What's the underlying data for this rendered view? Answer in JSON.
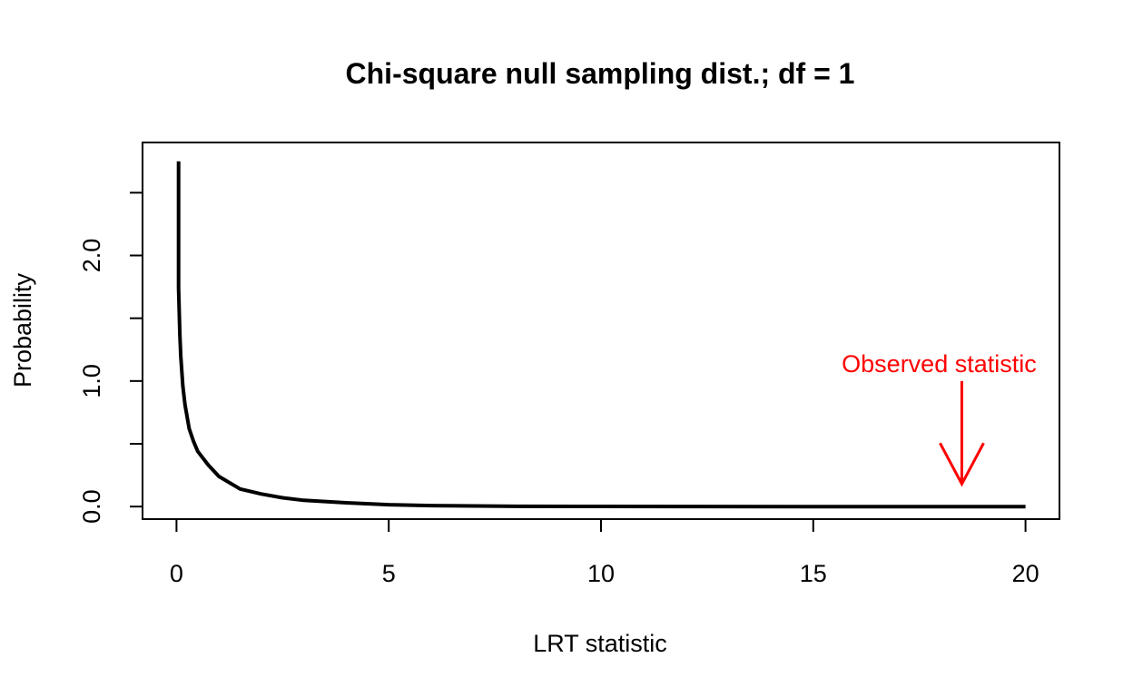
{
  "chart_data": {
    "type": "line",
    "title": "Chi-square null sampling dist.; df = 1",
    "xlabel": "LRT statistic",
    "ylabel": "Probability",
    "xlim": [
      -0.8,
      20.8
    ],
    "ylim": [
      -0.1,
      2.9
    ],
    "x_ticks": [
      0,
      5,
      10,
      15,
      20
    ],
    "x_tick_labels": [
      "0",
      "5",
      "10",
      "15",
      "20"
    ],
    "y_ticks": [
      0.0,
      0.5,
      1.0,
      1.5,
      2.0,
      2.5
    ],
    "y_tick_labels": [
      "0.0",
      "",
      "1.0",
      "",
      "2.0",
      ""
    ],
    "grid": false,
    "series": [
      {
        "color": "#000000",
        "x": [
          0.05,
          0.08,
          0.1,
          0.15,
          0.2,
          0.3,
          0.4,
          0.5,
          0.75,
          1.0,
          1.5,
          2.0,
          2.5,
          3.0,
          4.0,
          5.0,
          6.0,
          8.0,
          10.0,
          12.0,
          15.0,
          18.0,
          20.0
        ],
        "y": [
          1.74,
          1.37,
          1.2,
          0.96,
          0.81,
          0.62,
          0.52,
          0.44,
          0.33,
          0.24,
          0.14,
          0.1,
          0.07,
          0.05,
          0.03,
          0.015,
          0.008,
          0.002,
          0.001,
          0.0003,
          0.0,
          0.0,
          0.0
        ]
      }
    ],
    "annotations": [
      {
        "text": "Observed statistic",
        "x": 18.5,
        "y_text": 1.2,
        "arrow_from": 1.0,
        "arrow_to": 0.18,
        "color": "#ff0000"
      }
    ]
  }
}
